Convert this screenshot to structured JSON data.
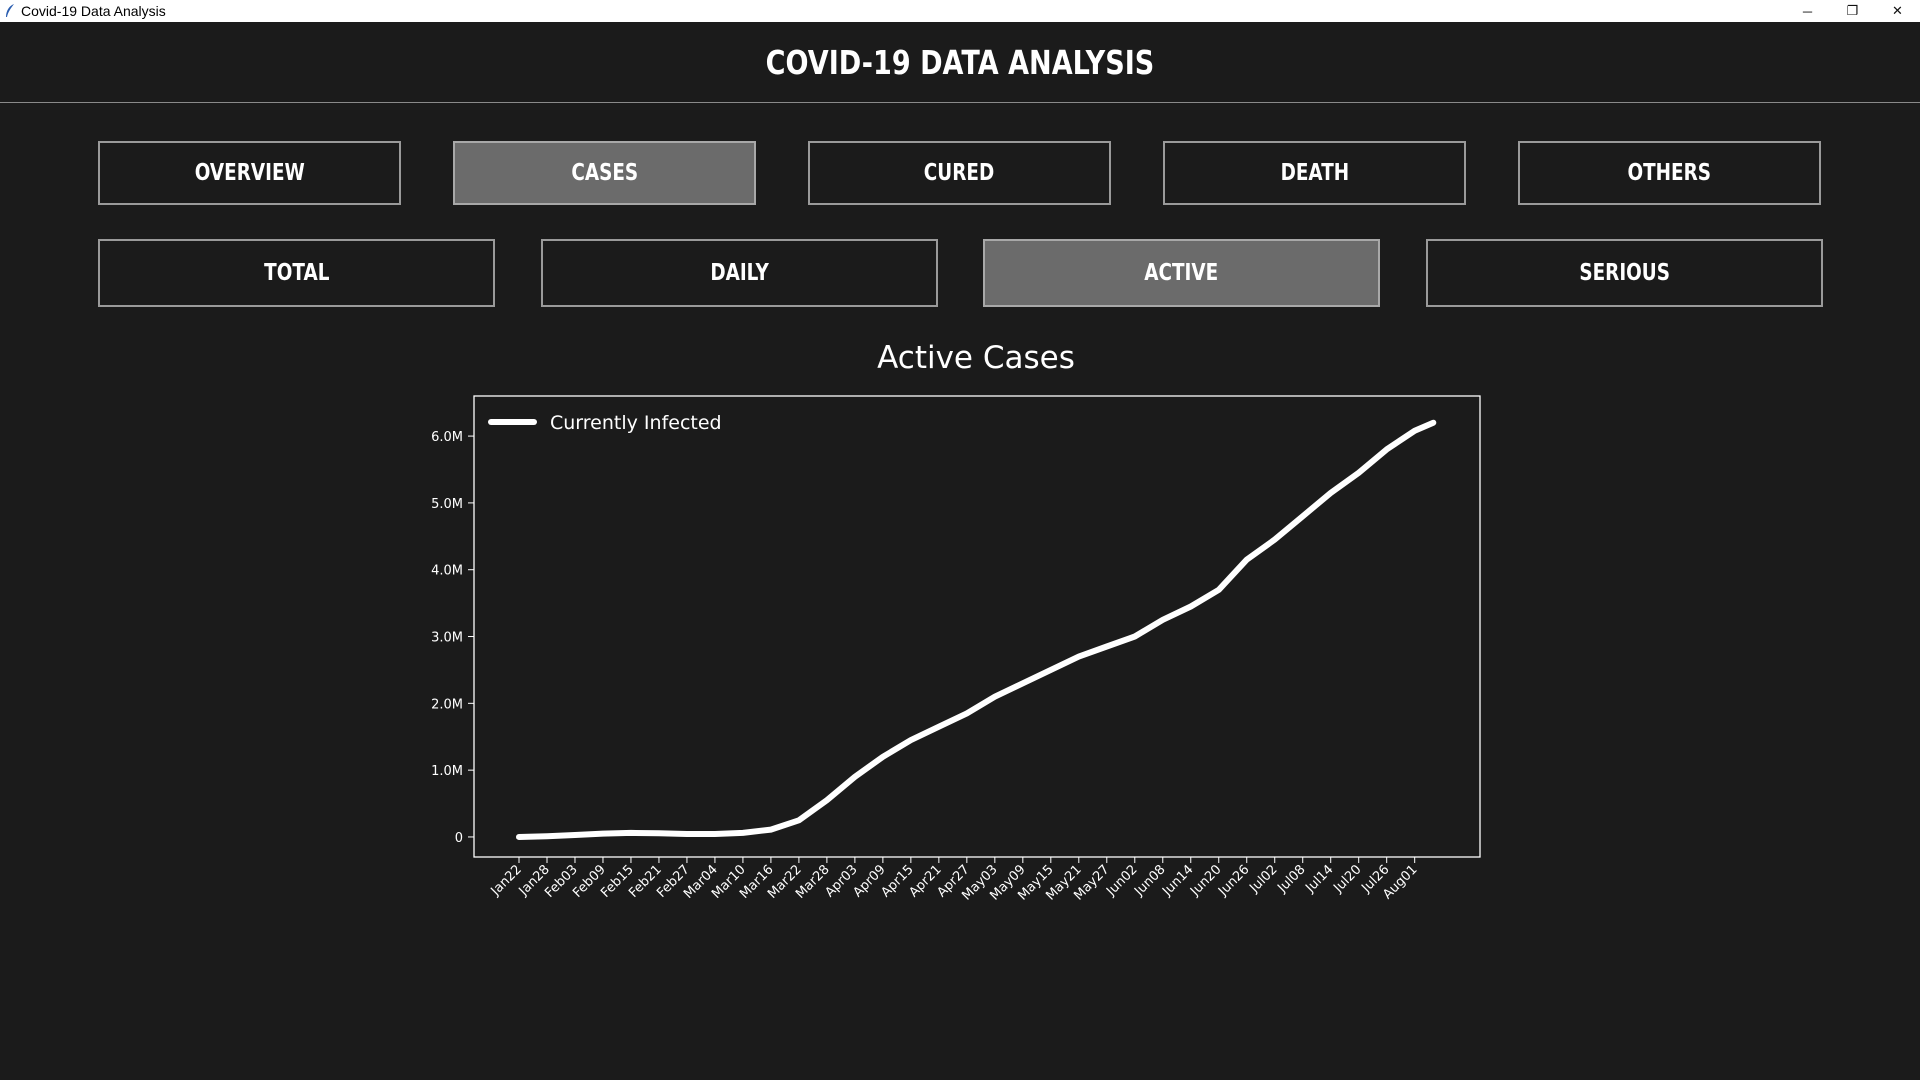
{
  "window": {
    "title": "Covid-19 Data Analysis",
    "minimize_glyph": "─",
    "restore_glyph": "❐",
    "close_glyph": "✕"
  },
  "header": {
    "title": "COVID-19 DATA ANALYSIS"
  },
  "nav_primary": [
    {
      "label": "OVERVIEW",
      "active": false
    },
    {
      "label": "CASES",
      "active": true
    },
    {
      "label": "CURED",
      "active": false
    },
    {
      "label": "DEATH",
      "active": false
    },
    {
      "label": "OTHERS",
      "active": false
    }
  ],
  "nav_secondary": [
    {
      "label": "TOTAL",
      "active": false
    },
    {
      "label": "DAILY",
      "active": false
    },
    {
      "label": "ACTIVE",
      "active": true
    },
    {
      "label": "SERIOUS",
      "active": false
    }
  ],
  "colors": {
    "background": "#1b1b1b",
    "active_button": "#6b6b6b",
    "line": "#ffffff"
  },
  "chart_data": {
    "type": "line",
    "title": "Active Cases",
    "legend": {
      "label": "Currently Infected",
      "placement": "top-left"
    },
    "x_ticks": [
      "Jan22",
      "Jan28",
      "Feb03",
      "Feb09",
      "Feb15",
      "Feb21",
      "Feb27",
      "Mar04",
      "Mar10",
      "Mar16",
      "Mar22",
      "Mar28",
      "Apr03",
      "Apr09",
      "Apr15",
      "Apr21",
      "Apr27",
      "May03",
      "May09",
      "May15",
      "May21",
      "May27",
      "Jun02",
      "Jun08",
      "Jun14",
      "Jun20",
      "Jun26",
      "Jul02",
      "Jul08",
      "Jul14",
      "Jul20",
      "Jul26",
      "Aug01"
    ],
    "y_ticks": [
      "0",
      "1.0M",
      "2.0M",
      "3.0M",
      "4.0M",
      "5.0M",
      "6.0M"
    ],
    "ylim": [
      -300000,
      6600000
    ],
    "series": [
      {
        "name": "Currently Infected",
        "x": [
          "Jan22",
          "Jan28",
          "Feb03",
          "Feb09",
          "Feb15",
          "Feb21",
          "Feb27",
          "Mar04",
          "Mar10",
          "Mar16",
          "Mar22",
          "Mar28",
          "Apr03",
          "Apr09",
          "Apr15",
          "Apr21",
          "Apr27",
          "May03",
          "May09",
          "May15",
          "May21",
          "May27",
          "Jun02",
          "Jun08",
          "Jun14",
          "Jun20",
          "Jun26",
          "Jul02",
          "Jul08",
          "Jul14",
          "Jul20",
          "Jul26",
          "Aug01",
          "Aug05"
        ],
        "values": [
          0,
          10000,
          30000,
          50000,
          60000,
          55000,
          45000,
          45000,
          60000,
          110000,
          250000,
          550000,
          900000,
          1200000,
          1450000,
          1650000,
          1850000,
          2100000,
          2300000,
          2500000,
          2700000,
          2850000,
          3000000,
          3250000,
          3450000,
          3700000,
          4150000,
          4450000,
          4800000,
          5150000,
          5450000,
          5800000,
          6080000,
          6200000
        ]
      }
    ],
    "grid": false
  }
}
